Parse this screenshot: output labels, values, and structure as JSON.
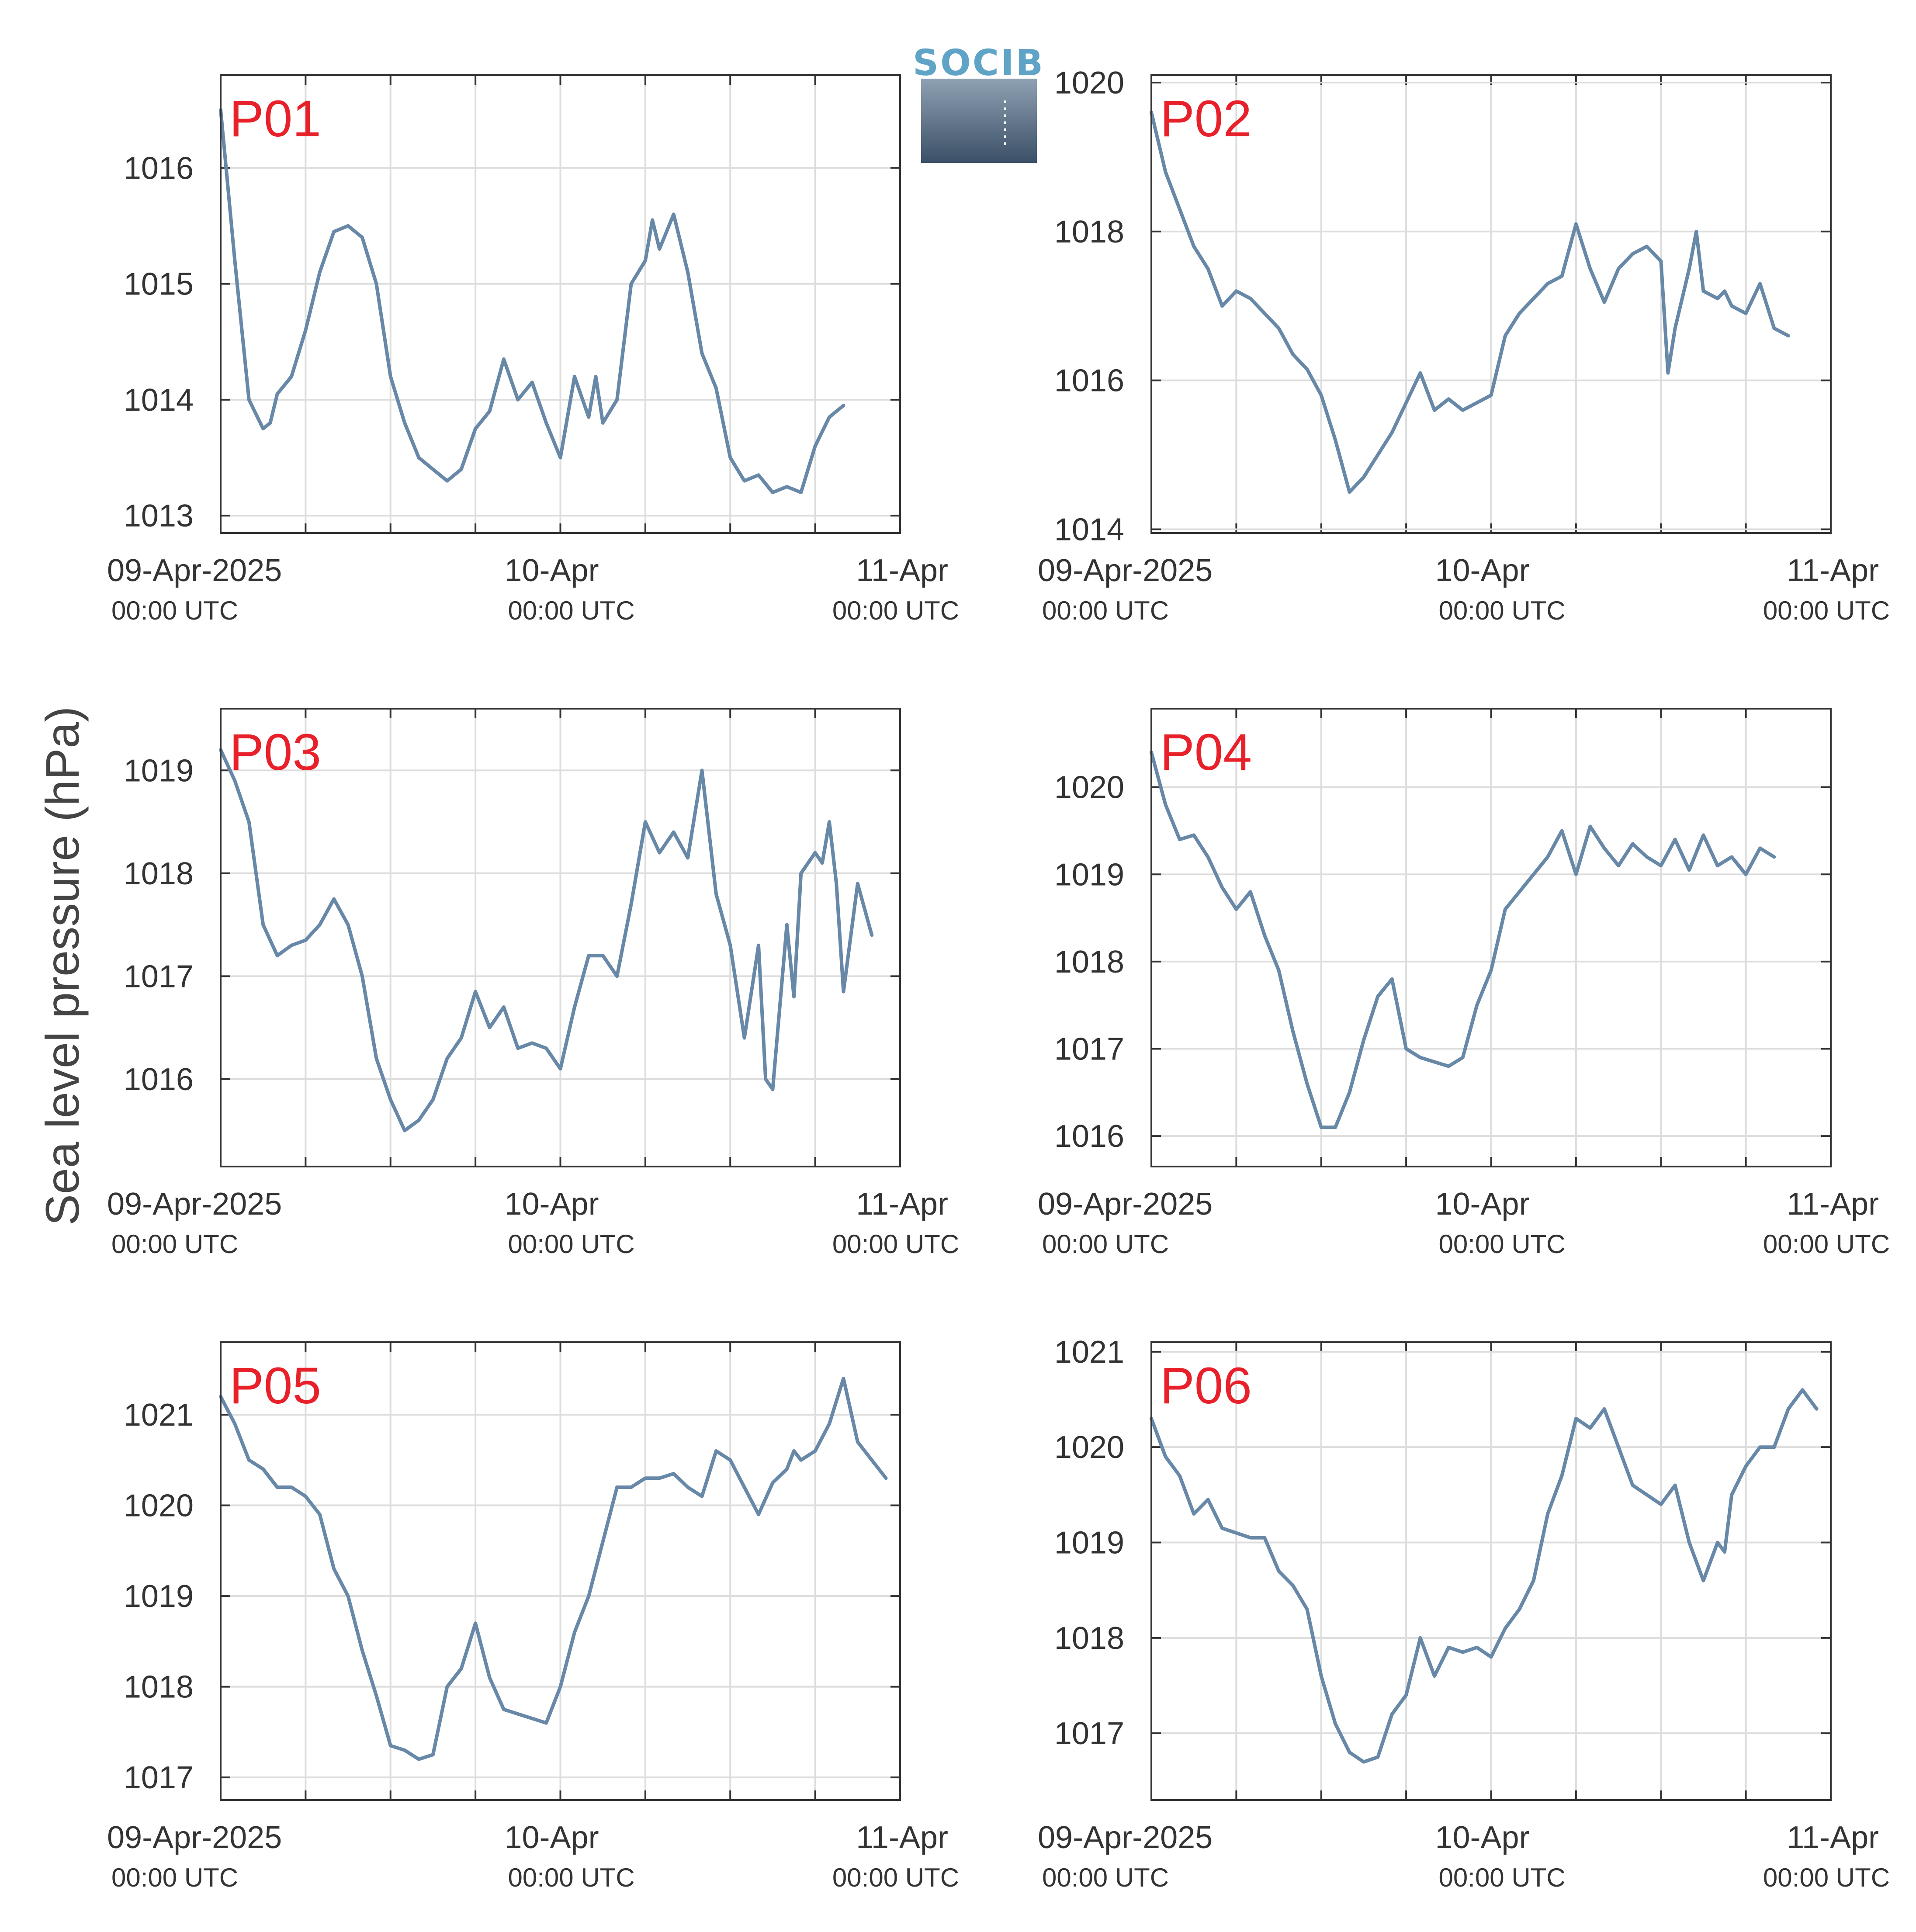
{
  "ylabel": "Sea level pressure (hPa)",
  "logo": {
    "text": "SOCIB",
    "color_top": "#5fa3c6",
    "color_grad_top": "#8fa2b4",
    "color_grad_bottom": "#3b4f66"
  },
  "colors": {
    "line": "#6888a8",
    "label": "#e8202a",
    "axis": "#333333",
    "grid": "#dddddd",
    "text": "#333333"
  },
  "x_ticks": [
    {
      "label": "09-Apr-2025",
      "sublabel": "00:00 UTC"
    },
    {
      "label": "10-Apr",
      "sublabel": "00:00 UTC"
    },
    {
      "label": "11-Apr",
      "sublabel": "00:00 UTC"
    }
  ],
  "chart_data": [
    {
      "type": "line",
      "name": "P01",
      "xlim": [
        "2025-04-09T00:00",
        "2025-04-11T00:00"
      ],
      "ylim": [
        1012.85,
        1016.8
      ],
      "yticks": [
        1013,
        1014,
        1015,
        1016
      ],
      "x_hours": [
        0,
        1,
        2,
        3,
        3.5,
        4,
        5,
        6,
        7,
        8,
        9,
        10,
        11,
        12,
        13,
        14,
        15,
        16,
        17,
        18,
        19,
        20,
        21,
        22,
        23,
        24,
        25,
        26,
        26.5,
        27,
        27.5,
        28,
        29,
        30,
        30.5,
        31,
        32,
        33,
        34,
        35,
        36,
        37,
        38,
        39,
        40,
        41,
        42,
        43,
        44,
        45,
        46,
        47,
        48
      ],
      "values": [
        1016.5,
        1015.2,
        1014.0,
        1013.75,
        1013.8,
        1014.05,
        1014.2,
        1014.6,
        1015.1,
        1015.45,
        1015.5,
        1015.4,
        1015.0,
        1014.2,
        1013.8,
        1013.5,
        1013.4,
        1013.3,
        1013.4,
        1013.75,
        1013.9,
        1014.35,
        1014.0,
        1014.15,
        1013.8,
        1013.5,
        1014.2,
        1013.85,
        1014.2,
        1013.8,
        1013.9,
        1014.0,
        1015.0,
        1015.2,
        1015.55,
        1015.3,
        1015.6,
        1015.1,
        1014.4,
        1014.1,
        1013.5,
        1013.3,
        1013.35,
        1013.2,
        1013.25,
        1013.2,
        1013.6,
        1013.85,
        1013.95,
        null,
        null,
        null,
        null
      ]
    },
    {
      "type": "line",
      "name": "P02",
      "xlim": [
        "2025-04-09T00:00",
        "2025-04-11T00:00"
      ],
      "ylim": [
        1013.95,
        1020.1
      ],
      "yticks": [
        1014,
        1016,
        1018,
        1020
      ],
      "x_hours": [
        0,
        1,
        2,
        3,
        4,
        5,
        6,
        7,
        8,
        9,
        10,
        11,
        12,
        13,
        14,
        15,
        16,
        17,
        18,
        19,
        20,
        21,
        22,
        23,
        24,
        25,
        26,
        27,
        28,
        29,
        30,
        31,
        32,
        33,
        34,
        35,
        36,
        36.5,
        37,
        38,
        38.5,
        39,
        40,
        40.5,
        41,
        42,
        43,
        44,
        45,
        46,
        47,
        48
      ],
      "values": [
        1019.6,
        1018.8,
        1018.3,
        1017.8,
        1017.5,
        1017.0,
        1017.2,
        1017.1,
        1016.9,
        1016.7,
        1016.35,
        1016.15,
        1015.8,
        1015.2,
        1014.5,
        1014.7,
        1015.0,
        1015.3,
        1015.7,
        1016.1,
        1015.6,
        1015.75,
        1015.6,
        1015.7,
        1015.8,
        1016.6,
        1016.9,
        1017.1,
        1017.3,
        1017.4,
        1018.1,
        1017.5,
        1017.05,
        1017.5,
        1017.7,
        1017.8,
        1017.6,
        1016.1,
        1016.7,
        1017.5,
        1018.0,
        1017.2,
        1017.1,
        1017.2,
        1017.0,
        1016.9,
        1017.3,
        1016.7,
        1016.6,
        null,
        null,
        null
      ]
    },
    {
      "type": "line",
      "name": "P03",
      "xlim": [
        "2025-04-09T00:00",
        "2025-04-11T00:00"
      ],
      "ylim": [
        1015.15,
        1019.6
      ],
      "yticks": [
        1016,
        1017,
        1018,
        1019
      ],
      "x_hours": [
        0,
        1,
        2,
        3,
        4,
        5,
        6,
        7,
        8,
        9,
        10,
        11,
        12,
        13,
        14,
        15,
        16,
        17,
        18,
        19,
        20,
        21,
        22,
        23,
        24,
        25,
        26,
        27,
        28,
        29,
        30,
        31,
        32,
        33,
        34,
        35,
        36,
        37,
        38,
        38.5,
        39,
        40,
        40.5,
        41,
        42,
        42.5,
        43,
        43.5,
        44,
        45,
        46,
        47,
        48
      ],
      "values": [
        1019.2,
        1018.9,
        1018.5,
        1017.5,
        1017.2,
        1017.3,
        1017.35,
        1017.5,
        1017.75,
        1017.5,
        1017.0,
        1016.2,
        1015.8,
        1015.5,
        1015.6,
        1015.8,
        1016.2,
        1016.4,
        1016.85,
        1016.5,
        1016.7,
        1016.3,
        1016.35,
        1016.3,
        1016.1,
        1016.7,
        1017.2,
        1017.2,
        1017.0,
        1017.7,
        1018.5,
        1018.2,
        1018.4,
        1018.15,
        1019.0,
        1017.8,
        1017.3,
        1016.4,
        1017.3,
        1016.0,
        1015.9,
        1017.5,
        1016.8,
        1018.0,
        1018.2,
        1018.1,
        1018.5,
        1017.9,
        1016.85,
        1017.9,
        1017.4,
        null,
        null
      ],
      "x_trim": 48
    },
    {
      "type": "line",
      "name": "P04",
      "xlim": [
        "2025-04-09T00:00",
        "2025-04-11T00:00"
      ],
      "ylim": [
        1015.65,
        1020.9
      ],
      "yticks": [
        1016,
        1017,
        1018,
        1019,
        1020
      ],
      "x_hours": [
        0,
        1,
        2,
        3,
        4,
        5,
        6,
        7,
        8,
        9,
        10,
        11,
        12,
        13,
        14,
        15,
        16,
        17,
        18,
        19,
        20,
        21,
        22,
        23,
        24,
        25,
        26,
        27,
        28,
        29,
        30,
        31,
        32,
        33,
        34,
        35,
        36,
        37,
        38,
        39,
        40,
        41,
        42,
        43,
        44,
        45,
        46,
        47,
        48
      ],
      "values": [
        1020.4,
        1019.8,
        1019.4,
        1019.45,
        1019.2,
        1018.85,
        1018.6,
        1018.8,
        1018.3,
        1017.9,
        1017.2,
        1016.6,
        1016.1,
        1016.1,
        1016.5,
        1017.1,
        1017.6,
        1017.8,
        1017.0,
        1016.9,
        1016.85,
        1016.8,
        1016.9,
        1017.5,
        1017.9,
        1018.6,
        1018.8,
        1019.0,
        1019.2,
        1019.5,
        1019.0,
        1019.55,
        1019.3,
        1019.1,
        1019.35,
        1019.2,
        1019.1,
        1019.4,
        1019.05,
        1019.45,
        1019.1,
        1019.2,
        1019.0,
        1019.3,
        1019.2,
        null,
        null,
        null,
        null
      ],
      "x_trim": 48
    },
    {
      "type": "line",
      "name": "P05",
      "xlim": [
        "2025-04-09T00:00",
        "2025-04-11T00:00"
      ],
      "ylim": [
        1016.75,
        1021.8
      ],
      "yticks": [
        1017,
        1018,
        1019,
        1020,
        1021
      ],
      "x_hours": [
        0,
        1,
        2,
        3,
        4,
        5,
        6,
        7,
        8,
        9,
        10,
        11,
        12,
        13,
        14,
        15,
        16,
        17,
        18,
        19,
        20,
        21,
        22,
        23,
        24,
        25,
        26,
        27,
        28,
        29,
        30,
        31,
        32,
        33,
        34,
        35,
        36,
        37,
        38,
        39,
        40,
        40.5,
        41,
        42,
        43,
        44,
        45,
        46,
        47,
        48
      ],
      "values": [
        1021.2,
        1020.9,
        1020.5,
        1020.4,
        1020.2,
        1020.2,
        1020.1,
        1019.9,
        1019.3,
        1019.0,
        1018.4,
        1017.9,
        1017.35,
        1017.3,
        1017.2,
        1017.25,
        1018.0,
        1018.2,
        1018.7,
        1018.1,
        1017.75,
        1017.7,
        1017.65,
        1017.6,
        1018.0,
        1018.6,
        1019.0,
        1019.6,
        1020.2,
        1020.2,
        1020.3,
        1020.3,
        1020.35,
        1020.2,
        1020.1,
        1020.6,
        1020.5,
        1020.2,
        1019.9,
        1020.25,
        1020.4,
        1020.6,
        1020.5,
        1020.6,
        1020.9,
        1021.4,
        1020.7,
        1020.5,
        1020.3,
        null
      ],
      "x_trim": 48
    },
    {
      "type": "line",
      "name": "P06",
      "xlim": [
        "2025-04-09T00:00",
        "2025-04-11T00:00"
      ],
      "ylim": [
        1016.3,
        1021.1
      ],
      "yticks": [
        1017,
        1018,
        1019,
        1020,
        1021
      ],
      "x_hours": [
        0,
        1,
        2,
        3,
        4,
        5,
        6,
        7,
        8,
        9,
        10,
        11,
        12,
        13,
        14,
        15,
        16,
        17,
        18,
        19,
        20,
        21,
        22,
        23,
        24,
        25,
        26,
        27,
        28,
        29,
        30,
        31,
        32,
        33,
        34,
        35,
        36,
        37,
        38,
        39,
        40,
        40.5,
        41,
        42,
        43,
        44,
        45,
        46,
        47,
        48
      ],
      "values": [
        1020.3,
        1019.9,
        1019.7,
        1019.3,
        1019.45,
        1019.15,
        1019.1,
        1019.05,
        1019.05,
        1018.7,
        1018.55,
        1018.3,
        1017.6,
        1017.1,
        1016.8,
        1016.7,
        1016.75,
        1017.2,
        1017.4,
        1018.0,
        1017.6,
        1017.9,
        1017.85,
        1017.9,
        1017.8,
        1018.1,
        1018.3,
        1018.6,
        1019.3,
        1019.7,
        1020.3,
        1020.2,
        1020.4,
        1020.0,
        1019.6,
        1019.5,
        1019.4,
        1019.6,
        1019.0,
        1018.6,
        1019.0,
        1018.9,
        1019.5,
        1019.8,
        1020.0,
        1020.0,
        1020.4,
        1020.6,
        1020.4,
        null
      ],
      "x_trim": 47
    }
  ]
}
